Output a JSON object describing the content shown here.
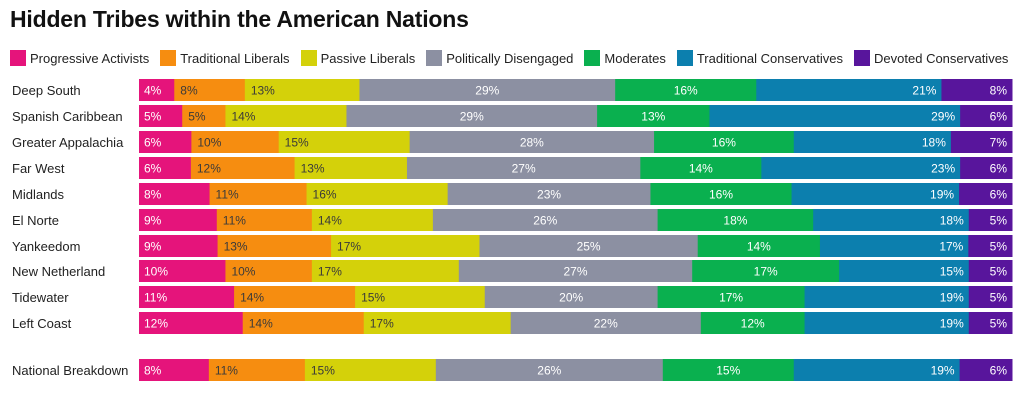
{
  "colors": {
    "Progressive Activists": "#e5147b",
    "Traditional Liberals": "#f68d10",
    "Passive Liberals": "#d4d10a",
    "Politically Disengaged": "#8c90a2",
    "Moderates": "#0ab04f",
    "Traditional Conservatives": "#0c7fae",
    "Devoted Conservatives": "#58159c"
  },
  "chart_data": {
    "type": "bar",
    "orientation": "horizontal",
    "stacked": true,
    "title": "Hidden Tribes within the American Nations",
    "value_suffix": "%",
    "legend_position": "top",
    "categories": [
      "Deep South",
      "Spanish Caribbean",
      "Greater Appalachia",
      "Far West",
      "Midlands",
      "El Norte",
      "Yankeedom",
      "New Netherland",
      "Tidewater",
      "Left Coast",
      "National Breakdown"
    ],
    "series": [
      {
        "name": "Progressive Activists",
        "values": [
          4,
          5,
          6,
          6,
          8,
          9,
          9,
          10,
          11,
          12,
          8
        ]
      },
      {
        "name": "Traditional Liberals",
        "values": [
          8,
          5,
          10,
          12,
          11,
          11,
          13,
          10,
          14,
          14,
          11
        ]
      },
      {
        "name": "Passive Liberals",
        "values": [
          13,
          14,
          15,
          13,
          16,
          14,
          17,
          17,
          15,
          17,
          15
        ]
      },
      {
        "name": "Politically Disengaged",
        "values": [
          29,
          29,
          28,
          27,
          23,
          26,
          25,
          27,
          20,
          22,
          26
        ]
      },
      {
        "name": "Moderates",
        "values": [
          16,
          13,
          16,
          14,
          16,
          18,
          14,
          17,
          17,
          12,
          15
        ]
      },
      {
        "name": "Traditional Conservatives",
        "values": [
          21,
          29,
          18,
          23,
          19,
          18,
          17,
          15,
          19,
          19,
          19
        ]
      },
      {
        "name": "Devoted Conservatives",
        "values": [
          8,
          6,
          7,
          6,
          6,
          5,
          5,
          5,
          5,
          5,
          6
        ]
      }
    ]
  }
}
